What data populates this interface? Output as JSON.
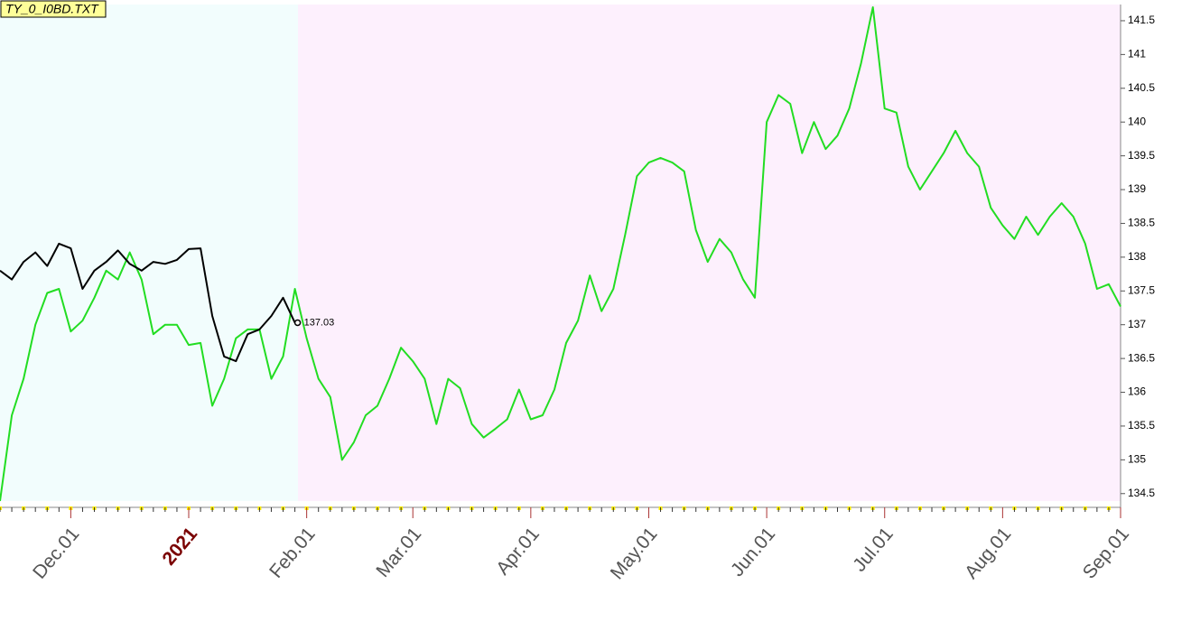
{
  "chart_data": {
    "type": "line",
    "title": "TY_0_I0BD.TXT",
    "categories": [
      null,
      null,
      null,
      null,
      null,
      null,
      "Dec.01",
      null,
      null,
      null,
      null,
      null,
      null,
      null,
      null,
      null,
      "2021",
      null,
      null,
      null,
      null,
      null,
      null,
      null,
      null,
      null,
      "Feb.01",
      null,
      null,
      null,
      null,
      null,
      null,
      null,
      null,
      "Mar.01",
      null,
      null,
      null,
      null,
      null,
      null,
      null,
      null,
      null,
      "Apr.01",
      null,
      null,
      null,
      null,
      null,
      null,
      null,
      null,
      null,
      "May.01",
      null,
      null,
      null,
      null,
      null,
      null,
      null,
      null,
      null,
      "Jun.01",
      null,
      null,
      null,
      null,
      null,
      null,
      null,
      null,
      null,
      "Jul.01",
      null,
      null,
      null,
      null,
      null,
      null,
      null,
      null,
      null,
      "Aug.01",
      null,
      null,
      null,
      null,
      null,
      null,
      null,
      null,
      null,
      "Sep.01"
    ],
    "series": [
      {
        "color": "#22dd22",
        "values": [
          134.39,
          135.66,
          136.2,
          137.0,
          137.47,
          137.53,
          136.9,
          137.06,
          137.4,
          137.8,
          137.67,
          138.07,
          137.67,
          136.86,
          137.0,
          137.0,
          136.7,
          136.73,
          135.8,
          136.2,
          136.8,
          136.93,
          136.93,
          136.2,
          136.53,
          137.53,
          136.8,
          136.2,
          135.93,
          135.0,
          135.26,
          135.66,
          135.8,
          136.2,
          136.66,
          136.46,
          136.2,
          135.53,
          136.2,
          136.06,
          135.53,
          135.33,
          135.46,
          135.6,
          136.04,
          135.6,
          135.66,
          136.04,
          136.73,
          137.06,
          137.73,
          137.2,
          137.53,
          138.33,
          139.2,
          139.4,
          139.47,
          139.4,
          139.27,
          138.4,
          137.93,
          138.27,
          138.07,
          137.67,
          137.4,
          140.0,
          140.4,
          140.27,
          139.54,
          140.0,
          139.6,
          139.8,
          140.2,
          140.87,
          141.7,
          140.2,
          140.14,
          139.34,
          139.0,
          139.27,
          139.54,
          139.87,
          139.54,
          139.34,
          138.73,
          138.47,
          138.27,
          138.6,
          138.33,
          138.6,
          138.8,
          138.6,
          138.2,
          137.53,
          137.6,
          137.27
        ]
      },
      {
        "color": "#000000",
        "marker_last": true,
        "values": [
          137.8,
          137.67,
          137.93,
          138.07,
          137.87,
          138.2,
          138.13,
          137.53,
          137.8,
          137.93,
          138.1,
          137.9,
          137.8,
          137.93,
          137.9,
          137.96,
          138.12,
          138.13,
          137.13,
          136.53,
          136.46,
          136.86,
          136.93,
          137.13,
          137.4,
          137.03,
          null,
          null,
          null,
          null,
          null,
          null,
          null,
          null,
          null,
          null,
          null,
          null,
          null,
          null,
          null,
          null,
          null,
          null,
          null,
          null,
          null,
          null,
          null,
          null,
          null,
          null,
          null,
          null,
          null,
          null,
          null,
          null,
          null,
          null,
          null,
          null,
          null,
          null,
          null,
          null,
          null,
          null,
          null,
          null,
          null,
          null,
          null,
          null,
          null,
          null,
          null,
          null,
          null,
          null,
          null,
          null,
          null,
          null,
          null,
          null,
          null,
          null,
          null,
          null,
          null,
          null,
          null,
          null,
          null,
          null
        ]
      }
    ],
    "ylim": [
      134.39,
      141.74
    ],
    "yticks": [
      134.5,
      135,
      135.5,
      136,
      136.5,
      137,
      137.5,
      138,
      138.5,
      139,
      139.5,
      140,
      140.5,
      141,
      141.5
    ],
    "year_label_color": "#7a0000",
    "label_color": "#555555"
  }
}
